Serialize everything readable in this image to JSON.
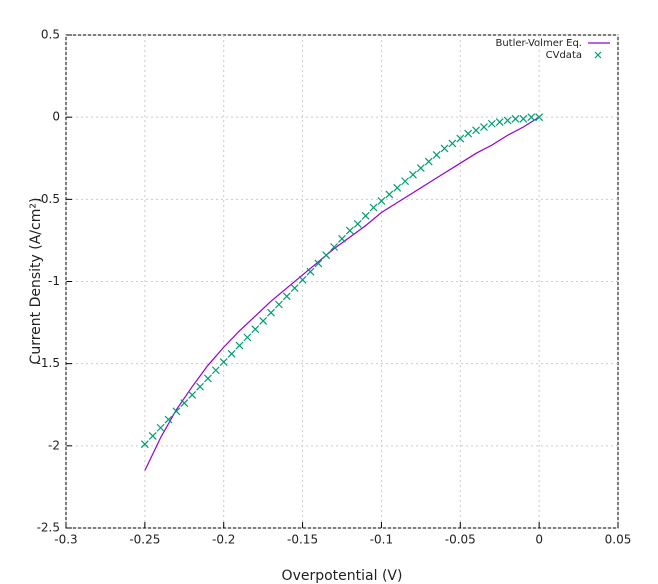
{
  "chart_data": {
    "type": "line",
    "xlabel": "Overpotential (V)",
    "ylabel": "Current Density (A/cm²)",
    "xlim": [
      -0.3,
      0.05
    ],
    "ylim": [
      -2.5,
      0.5
    ],
    "xticks": [
      -0.3,
      -0.25,
      -0.2,
      -0.15,
      -0.1,
      -0.05,
      0,
      0.05
    ],
    "yticks": [
      0.5,
      0,
      -0.5,
      -1,
      -1.5,
      -2,
      -2.5
    ],
    "grid": true,
    "legend": "top-right",
    "series": [
      {
        "name": "Butler-Volmer Eq.",
        "color": "#9400d3",
        "style": "line",
        "x": [
          -0.25,
          -0.24,
          -0.23,
          -0.22,
          -0.21,
          -0.2,
          -0.19,
          -0.18,
          -0.17,
          -0.16,
          -0.15,
          -0.14,
          -0.13,
          -0.12,
          -0.11,
          -0.1,
          -0.09,
          -0.08,
          -0.07,
          -0.06,
          -0.05,
          -0.04,
          -0.03,
          -0.02,
          -0.01,
          0
        ],
        "values": [
          -2.15,
          -1.95,
          -1.78,
          -1.64,
          -1.51,
          -1.4,
          -1.3,
          -1.21,
          -1.12,
          -1.04,
          -0.96,
          -0.88,
          -0.8,
          -0.73,
          -0.66,
          -0.58,
          -0.52,
          -0.46,
          -0.4,
          -0.34,
          -0.28,
          -0.22,
          -0.17,
          -0.11,
          -0.06,
          0
        ]
      },
      {
        "name": "CVdata",
        "color": "#009e73",
        "style": "points",
        "x": [
          -0.25,
          -0.245,
          -0.24,
          -0.235,
          -0.23,
          -0.225,
          -0.22,
          -0.215,
          -0.21,
          -0.205,
          -0.2,
          -0.195,
          -0.19,
          -0.185,
          -0.18,
          -0.175,
          -0.17,
          -0.165,
          -0.16,
          -0.155,
          -0.15,
          -0.145,
          -0.14,
          -0.135,
          -0.13,
          -0.125,
          -0.12,
          -0.115,
          -0.11,
          -0.105,
          -0.1,
          -0.095,
          -0.09,
          -0.085,
          -0.08,
          -0.075,
          -0.07,
          -0.065,
          -0.06,
          -0.055,
          -0.05,
          -0.045,
          -0.04,
          -0.035,
          -0.03,
          -0.025,
          -0.02,
          -0.015,
          -0.01,
          -0.005,
          0
        ],
        "values": [
          -1.99,
          -1.94,
          -1.89,
          -1.84,
          -1.79,
          -1.74,
          -1.69,
          -1.64,
          -1.59,
          -1.54,
          -1.49,
          -1.44,
          -1.39,
          -1.34,
          -1.29,
          -1.24,
          -1.19,
          -1.14,
          -1.09,
          -1.04,
          -0.99,
          -0.94,
          -0.89,
          -0.84,
          -0.79,
          -0.74,
          -0.69,
          -0.65,
          -0.6,
          -0.55,
          -0.51,
          -0.47,
          -0.43,
          -0.39,
          -0.35,
          -0.31,
          -0.27,
          -0.23,
          -0.19,
          -0.16,
          -0.13,
          -0.1,
          -0.08,
          -0.06,
          -0.04,
          -0.03,
          -0.02,
          -0.01,
          -0.01,
          0,
          0
        ]
      }
    ]
  }
}
